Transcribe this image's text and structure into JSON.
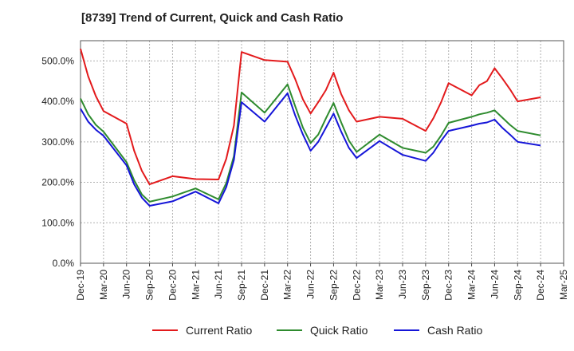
{
  "chart_data": {
    "type": "line",
    "title": "[8739]  Trend of Current, Quick and Cash Ratio",
    "xlabel": "",
    "ylabel": "",
    "ylim": [
      0,
      550
    ],
    "yticks": [
      0,
      100,
      200,
      300,
      400,
      500
    ],
    "ytick_labels": [
      "0.0%",
      "100.0%",
      "200.0%",
      "300.0%",
      "400.0%",
      "500.0%"
    ],
    "x_range": [
      0,
      63
    ],
    "xticks": [
      0,
      3,
      6,
      9,
      12,
      15,
      18,
      21,
      24,
      27,
      30,
      33,
      36,
      39,
      42,
      45,
      48,
      51,
      54,
      57,
      60,
      63
    ],
    "xtick_labels": [
      "Dec-19",
      "Mar-20",
      "Jun-20",
      "Sep-20",
      "Dec-20",
      "Mar-21",
      "Jun-21",
      "Sep-21",
      "Dec-21",
      "Mar-22",
      "Jun-22",
      "Sep-22",
      "Dec-22",
      "Mar-23",
      "Jun-23",
      "Sep-23",
      "Dec-23",
      "Mar-24",
      "Jun-24",
      "Sep-24",
      "Dec-24",
      "Mar-25"
    ],
    "grid": true,
    "legend_position": "bottom",
    "series": [
      {
        "name": "Current Ratio",
        "color": "#e31a1c",
        "points": [
          [
            0,
            530
          ],
          [
            1,
            462
          ],
          [
            2,
            413
          ],
          [
            3,
            376
          ],
          [
            6,
            345
          ],
          [
            7,
            278
          ],
          [
            8,
            228
          ],
          [
            9,
            195
          ],
          [
            12,
            215
          ],
          [
            15,
            208
          ],
          [
            18,
            207
          ],
          [
            19,
            258
          ],
          [
            20,
            340
          ],
          [
            21,
            522
          ],
          [
            24,
            502
          ],
          [
            27,
            498
          ],
          [
            28,
            455
          ],
          [
            29,
            405
          ],
          [
            30,
            370
          ],
          [
            31,
            398
          ],
          [
            32,
            428
          ],
          [
            33,
            471
          ],
          [
            34,
            418
          ],
          [
            35,
            378
          ],
          [
            36,
            350
          ],
          [
            39,
            362
          ],
          [
            42,
            357
          ],
          [
            45,
            327
          ],
          [
            46,
            358
          ],
          [
            47,
            397
          ],
          [
            48,
            445
          ],
          [
            51,
            415
          ],
          [
            52,
            440
          ],
          [
            53,
            450
          ],
          [
            54,
            482
          ],
          [
            55,
            457
          ],
          [
            56,
            430
          ],
          [
            57,
            400
          ],
          [
            60,
            410
          ]
        ]
      },
      {
        "name": "Quick Ratio",
        "color": "#2e8b2e",
        "points": [
          [
            0,
            407
          ],
          [
            1,
            368
          ],
          [
            2,
            342
          ],
          [
            3,
            325
          ],
          [
            6,
            250
          ],
          [
            7,
            205
          ],
          [
            8,
            170
          ],
          [
            9,
            152
          ],
          [
            12,
            165
          ],
          [
            15,
            185
          ],
          [
            18,
            158
          ],
          [
            19,
            198
          ],
          [
            20,
            265
          ],
          [
            21,
            422
          ],
          [
            24,
            372
          ],
          [
            27,
            442
          ],
          [
            28,
            388
          ],
          [
            29,
            335
          ],
          [
            30,
            297
          ],
          [
            31,
            318
          ],
          [
            32,
            358
          ],
          [
            33,
            396
          ],
          [
            34,
            348
          ],
          [
            35,
            303
          ],
          [
            36,
            275
          ],
          [
            39,
            318
          ],
          [
            42,
            285
          ],
          [
            45,
            273
          ],
          [
            46,
            288
          ],
          [
            47,
            315
          ],
          [
            48,
            347
          ],
          [
            51,
            362
          ],
          [
            52,
            368
          ],
          [
            53,
            372
          ],
          [
            54,
            378
          ],
          [
            55,
            360
          ],
          [
            56,
            342
          ],
          [
            57,
            327
          ],
          [
            60,
            316
          ]
        ]
      },
      {
        "name": "Cash Ratio",
        "color": "#1515d8",
        "points": [
          [
            0,
            382
          ],
          [
            1,
            350
          ],
          [
            2,
            330
          ],
          [
            3,
            315
          ],
          [
            6,
            242
          ],
          [
            7,
            195
          ],
          [
            8,
            162
          ],
          [
            9,
            142
          ],
          [
            12,
            153
          ],
          [
            15,
            177
          ],
          [
            18,
            148
          ],
          [
            19,
            188
          ],
          [
            20,
            255
          ],
          [
            21,
            398
          ],
          [
            24,
            350
          ],
          [
            27,
            420
          ],
          [
            28,
            365
          ],
          [
            29,
            318
          ],
          [
            30,
            278
          ],
          [
            31,
            300
          ],
          [
            32,
            335
          ],
          [
            33,
            370
          ],
          [
            34,
            325
          ],
          [
            35,
            285
          ],
          [
            36,
            260
          ],
          [
            39,
            302
          ],
          [
            42,
            268
          ],
          [
            45,
            253
          ],
          [
            46,
            273
          ],
          [
            47,
            302
          ],
          [
            48,
            327
          ],
          [
            51,
            340
          ],
          [
            52,
            345
          ],
          [
            53,
            348
          ],
          [
            54,
            355
          ],
          [
            55,
            335
          ],
          [
            56,
            318
          ],
          [
            57,
            300
          ],
          [
            60,
            291
          ]
        ]
      }
    ]
  }
}
